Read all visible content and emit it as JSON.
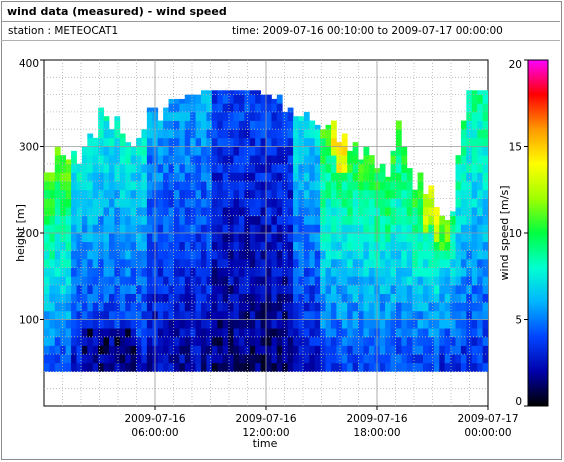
{
  "header": {
    "title": "wind data (measured) - wind speed",
    "station": "station : METEOCAT1",
    "time_range": "time: 2009-07-16 00:10:00 to 2009-07-17 00:00:00"
  },
  "chart_data": {
    "type": "heatmap",
    "title": "wind data (measured) - wind speed",
    "xlabel": "time",
    "ylabel": "height [m]",
    "colorbar_label": "wind speed [m/s]",
    "xlim_hours": [
      0,
      24
    ],
    "ylim": [
      0,
      400
    ],
    "y_ticks": [
      100,
      200,
      300,
      400
    ],
    "x_ticks": [
      {
        "hour": 6,
        "label": [
          "2009-07-16",
          "06:00:00"
        ]
      },
      {
        "hour": 12,
        "label": [
          "2009-07-16",
          "12:00:00"
        ]
      },
      {
        "hour": 18,
        "label": [
          "2009-07-16",
          "18:00:00"
        ]
      },
      {
        "hour": 24,
        "label": [
          "2009-07-17",
          "00:00:00"
        ]
      }
    ],
    "colorbar_range": [
      0,
      20
    ],
    "colorbar_ticks": [
      0,
      5,
      10,
      15,
      20
    ],
    "colormap": [
      "#000000",
      "#0000aa",
      "#0044ff",
      "#00b4ff",
      "#00ffd0",
      "#00ff40",
      "#a0ff00",
      "#ffff00",
      "#ff9900",
      "#ff0000",
      "#ff00ff"
    ],
    "grid": true,
    "data_bottom_height_m": 40,
    "column_top_height_m": [
      270,
      270,
      300,
      290,
      285,
      295,
      280,
      300,
      315,
      310,
      345,
      335,
      320,
      335,
      315,
      305,
      300,
      310,
      320,
      345,
      345,
      330,
      345,
      355,
      355,
      355,
      360,
      360,
      360,
      365,
      365,
      365,
      365,
      365,
      365,
      365,
      365,
      365,
      365,
      365,
      360,
      360,
      355,
      360,
      340,
      345,
      335,
      335,
      340,
      330,
      325,
      320,
      325,
      330,
      305,
      315,
      295,
      305,
      285,
      300,
      290,
      275,
      280,
      265,
      295,
      330,
      300,
      275,
      250,
      270,
      245,
      255,
      230,
      220,
      215,
      225,
      290,
      330,
      365,
      365,
      365,
      365
    ],
    "low_speed_core_hours": [
      2,
      5
    ],
    "low_speed_core_height_m": [
      40,
      85
    ]
  }
}
